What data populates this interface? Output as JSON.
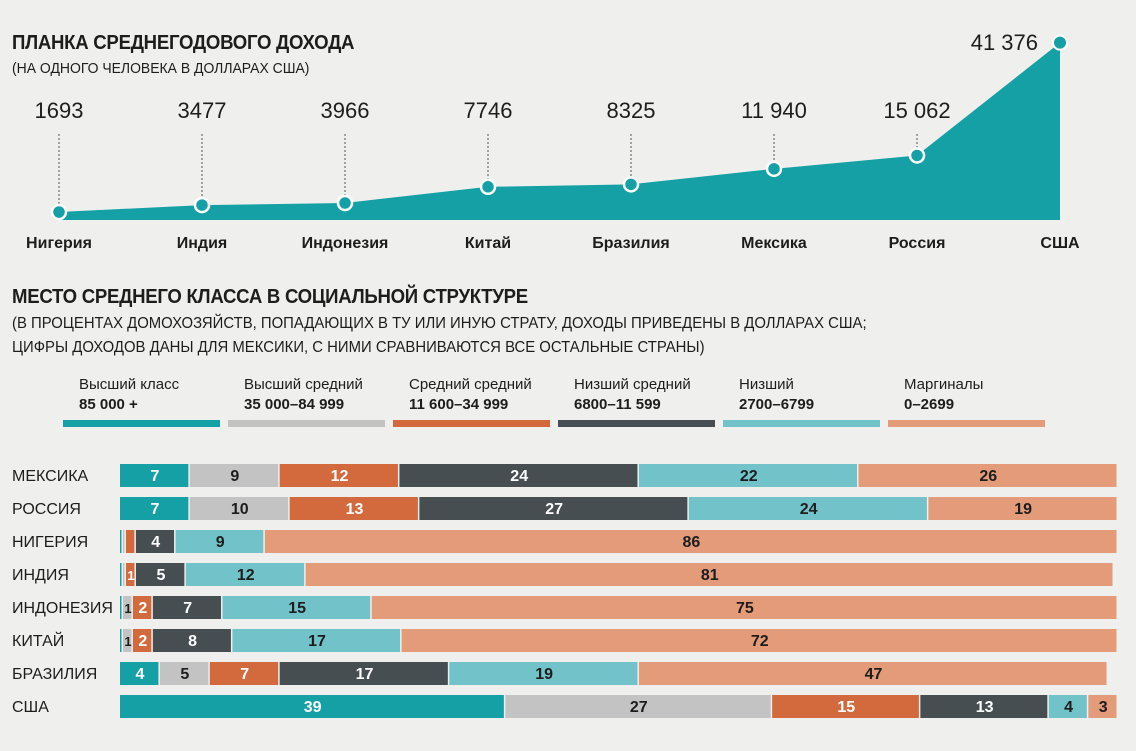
{
  "income": {
    "title": "ПЛАНКА СРЕДНЕГОДОВОГО ДОХОДА",
    "subtitle": "(НА ОДНОГО ЧЕЛОВЕКА В ДОЛЛАРАХ США)"
  },
  "structure": {
    "title": "МЕСТО СРЕДНЕГО КЛАССА В СОЦИАЛЬНОЙ СТРУКТУРЕ",
    "subtitle_line1": "(В ПРОЦЕНТАХ ДОМОХОЗЯЙСТВ, ПОПАДАЮЩИХ В ТУ ИЛИ ИНУЮ СТРАТУ, ДОХОДЫ ПРИВЕДЕНЫ В ДОЛЛАРАХ США;",
    "subtitle_line2": "ЦИФРЫ ДОХОДОВ ДАНЫ ДЛЯ МЕКСИКИ, С НИМИ СРАВНИВАЮТСЯ ВСЕ ОСТАЛЬНЫЕ СТРАНЫ)"
  },
  "colors": {
    "teal": "#14a0a4",
    "gray": "#c3c3c3",
    "orange": "#d36a3e",
    "dark": "#474e52",
    "light_teal": "#72c3c9",
    "peach": "#e39b79",
    "line_fill": "#14a0a4"
  },
  "chart_data": [
    {
      "type": "area",
      "categories": [
        "Нигерия",
        "Индия",
        "Индонезия",
        "Китай",
        "Бразилия",
        "Мексика",
        "Россия",
        "США"
      ],
      "values": [
        1693,
        3477,
        3966,
        7746,
        8325,
        11940,
        15062,
        41376
      ],
      "value_labels": [
        "1693",
        "3477",
        "3966",
        "7746",
        "8325",
        "11 940",
        "15 062",
        "41 376"
      ],
      "ylim": [
        0,
        42000
      ]
    },
    {
      "type": "bar",
      "stacked": true,
      "orientation": "horizontal",
      "categories": [
        "МЕКСИКА",
        "РОССИЯ",
        "НИГЕРИЯ",
        "ИНДИЯ",
        "ИНДОНЕЗИЯ",
        "КИТАЙ",
        "БРАЗИЛИЯ",
        "США"
      ],
      "series": [
        {
          "name": "Высший класс",
          "range": "85 000 +",
          "color": "#14a0a4",
          "values": [
            7,
            7,
            0.3,
            0.3,
            0.3,
            0.3,
            4,
            39
          ],
          "labels": [
            "7",
            "7",
            "",
            "",
            "",
            "",
            "4",
            "39"
          ]
        },
        {
          "name": "Высший средний",
          "range": "35 000–84 999",
          "color": "#c3c3c3",
          "values": [
            9,
            10,
            0.3,
            0.3,
            1,
            1,
            5,
            27
          ],
          "labels": [
            "9",
            "10",
            "",
            "",
            "1",
            "1",
            "5",
            "27"
          ]
        },
        {
          "name": "Средний средний",
          "range": "11 600–34 999",
          "color": "#d36a3e",
          "values": [
            12,
            13,
            1,
            1,
            2,
            2,
            7,
            15
          ],
          "labels": [
            "12",
            "13",
            "",
            "1",
            "2",
            "2",
            "7",
            "15"
          ]
        },
        {
          "name": "Низший средний",
          "range": "6800–11 599",
          "color": "#474e52",
          "values": [
            24,
            27,
            4,
            5,
            7,
            8,
            17,
            13
          ],
          "labels": [
            "24",
            "27",
            "4",
            "5",
            "7",
            "8",
            "17",
            "13"
          ]
        },
        {
          "name": "Низший",
          "range": "2700–6799",
          "color": "#72c3c9",
          "values": [
            22,
            24,
            9,
            12,
            15,
            17,
            19,
            4
          ],
          "labels": [
            "22",
            "24",
            "9",
            "12",
            "15",
            "17",
            "19",
            "4"
          ]
        },
        {
          "name": "Маргиналы",
          "range": "0–2699",
          "color": "#e39b79",
          "values": [
            26,
            19,
            86,
            81,
            75,
            72,
            47,
            3
          ],
          "labels": [
            "26",
            "19",
            "86",
            "81",
            "75",
            "72",
            "47",
            "3"
          ]
        }
      ],
      "xlim": [
        0,
        100
      ]
    }
  ]
}
